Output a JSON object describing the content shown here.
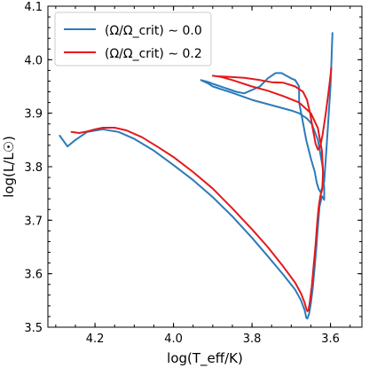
{
  "chart_data": {
    "type": "line",
    "title": "",
    "xlabel": "log(T_eff/K)",
    "ylabel": "log(L/L☉)",
    "xlim": [
      4.32,
      3.52
    ],
    "xreversed": true,
    "ylim": [
      3.5,
      4.1
    ],
    "xticks": [
      4.2,
      4.0,
      3.8,
      3.6
    ],
    "xtick_labels": [
      "4.2",
      "4.0",
      "3.8",
      "3.6"
    ],
    "yticks": [
      3.5,
      3.6,
      3.7,
      3.8,
      3.9,
      4.0,
      4.1
    ],
    "ytick_labels": [
      "3.5",
      "3.6",
      "3.7",
      "3.8",
      "3.9",
      "4.0",
      "4.1"
    ],
    "grid": false,
    "legend_position": "top-left",
    "series": [
      {
        "name": "(Ω/Ω_crit) ∼ 0.0",
        "color": "#2b7bba",
        "x": [
          4.29,
          4.27,
          4.25,
          4.22,
          4.18,
          4.14,
          4.1,
          4.05,
          4.0,
          3.95,
          3.9,
          3.85,
          3.8,
          3.76,
          3.72,
          3.69,
          3.675,
          3.665,
          3.662,
          3.659,
          3.655,
          3.65,
          3.645,
          3.64,
          3.636,
          3.633,
          3.628,
          3.622,
          3.616,
          3.616,
          3.62,
          3.632,
          3.648,
          3.66,
          3.68,
          3.7,
          3.75,
          3.8,
          3.85,
          3.9,
          3.91,
          3.93,
          3.91,
          3.9,
          3.86,
          3.84,
          3.82,
          3.78,
          3.76,
          3.74,
          3.725,
          3.7,
          3.69,
          3.68,
          3.68,
          3.672,
          3.662,
          3.65,
          3.64,
          3.635,
          3.63,
          3.625,
          3.616,
          3.608,
          3.6,
          3.595
        ],
        "y": [
          3.858,
          3.838,
          3.85,
          3.865,
          3.87,
          3.865,
          3.852,
          3.83,
          3.803,
          3.775,
          3.743,
          3.707,
          3.667,
          3.633,
          3.598,
          3.57,
          3.55,
          3.53,
          3.518,
          3.516,
          3.524,
          3.545,
          3.575,
          3.615,
          3.65,
          3.68,
          3.725,
          3.745,
          3.738,
          3.76,
          3.8,
          3.85,
          3.88,
          3.89,
          3.9,
          3.905,
          3.915,
          3.925,
          3.938,
          3.95,
          3.955,
          3.962,
          3.958,
          3.955,
          3.945,
          3.94,
          3.937,
          3.95,
          3.965,
          3.975,
          3.975,
          3.965,
          3.962,
          3.95,
          3.92,
          3.89,
          3.85,
          3.815,
          3.79,
          3.77,
          3.758,
          3.752,
          3.772,
          3.86,
          3.95,
          4.05
        ]
      },
      {
        "name": "(Ω/Ω_crit) ∼ 0.2",
        "color": "#e31a1c",
        "x": [
          4.26,
          4.24,
          4.22,
          4.2,
          4.18,
          4.15,
          4.12,
          4.08,
          4.04,
          4.0,
          3.95,
          3.9,
          3.85,
          3.8,
          3.76,
          3.72,
          3.69,
          3.675,
          3.666,
          3.662,
          3.659,
          3.656,
          3.653,
          3.648,
          3.643,
          3.638,
          3.634,
          3.63,
          3.626,
          3.621,
          3.619,
          3.622,
          3.632,
          3.65,
          3.68,
          3.72,
          3.76,
          3.8,
          3.85,
          3.88,
          3.9,
          3.89,
          3.86,
          3.82,
          3.78,
          3.75,
          3.72,
          3.69,
          3.67,
          3.66,
          3.652,
          3.645,
          3.638,
          3.632,
          3.626,
          3.62,
          3.612,
          3.605,
          3.6,
          3.598
        ],
        "y": [
          3.865,
          3.863,
          3.866,
          3.87,
          3.873,
          3.873,
          3.868,
          3.855,
          3.837,
          3.818,
          3.79,
          3.759,
          3.722,
          3.683,
          3.65,
          3.613,
          3.583,
          3.563,
          3.546,
          3.535,
          3.53,
          3.532,
          3.545,
          3.575,
          3.615,
          3.655,
          3.695,
          3.725,
          3.745,
          3.758,
          3.79,
          3.83,
          3.872,
          3.9,
          3.92,
          3.932,
          3.942,
          3.95,
          3.962,
          3.968,
          3.97,
          3.969,
          3.968,
          3.966,
          3.962,
          3.958,
          3.957,
          3.95,
          3.94,
          3.925,
          3.9,
          3.87,
          3.843,
          3.832,
          3.838,
          3.86,
          3.9,
          3.94,
          3.97,
          3.985
        ]
      }
    ]
  }
}
